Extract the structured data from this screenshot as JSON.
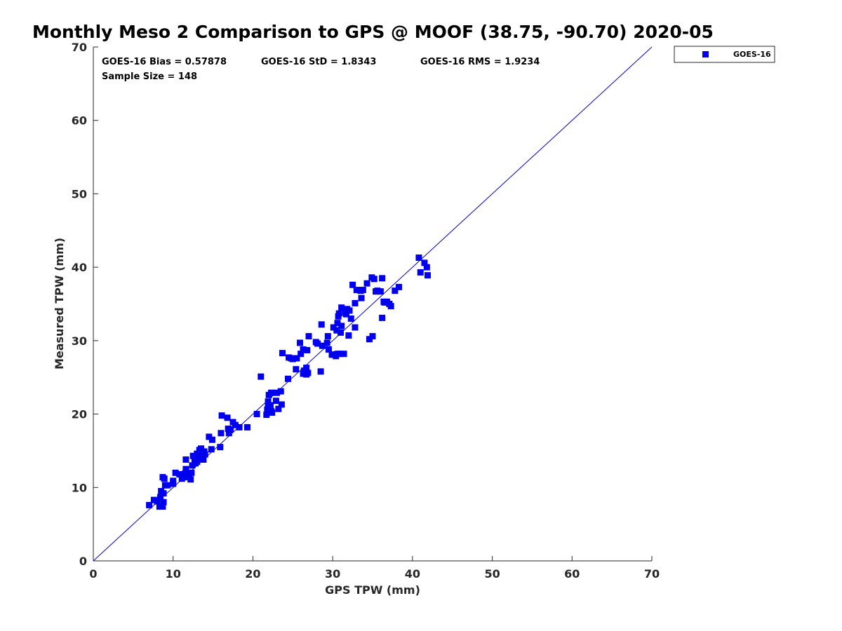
{
  "chart_data": {
    "type": "scatter",
    "title": "Monthly Meso 2 Comparison to GPS @ MOOF (38.75, -90.70) 2020-05",
    "xlabel": "GPS TPW (mm)",
    "ylabel": "Measured TPW (mm)",
    "xlim": [
      0,
      70
    ],
    "ylim": [
      0,
      70
    ],
    "xticks": [
      "0",
      "10",
      "20",
      "30",
      "40",
      "50",
      "60",
      "70"
    ],
    "yticks": [
      "0",
      "10",
      "20",
      "30",
      "40",
      "50",
      "60",
      "70"
    ],
    "grid": false,
    "legend_position": "top-right-outside",
    "reference_line": {
      "from": [
        0,
        0
      ],
      "to": [
        70,
        70
      ],
      "color": "#0000cc"
    },
    "annotations": [
      "GOES-16 Bias = 0.57878",
      "GOES-16 StD = 1.8343",
      "GOES-16 RMS = 1.9234",
      "Sample Size = 148"
    ],
    "series": [
      {
        "name": "GOES-16",
        "color": "#0000ee",
        "marker": "square",
        "points": [
          [
            7.0,
            7.6
          ],
          [
            7.6,
            8.3
          ],
          [
            8.0,
            8.1
          ],
          [
            8.3,
            7.4
          ],
          [
            8.4,
            8.7
          ],
          [
            8.5,
            9.5
          ],
          [
            8.7,
            7.4
          ],
          [
            8.8,
            8.0
          ],
          [
            8.8,
            9.2
          ],
          [
            8.7,
            11.4
          ],
          [
            8.9,
            11.2
          ],
          [
            9.0,
            10.3
          ],
          [
            10.0,
            10.5
          ],
          [
            10.0,
            10.9
          ],
          [
            10.3,
            12.0
          ],
          [
            10.8,
            11.8
          ],
          [
            11.1,
            11.2
          ],
          [
            11.3,
            11.6
          ],
          [
            11.5,
            11.9
          ],
          [
            11.6,
            12.5
          ],
          [
            11.8,
            11.4
          ],
          [
            11.6,
            13.8
          ],
          [
            12.2,
            11.1
          ],
          [
            12.3,
            12.0
          ],
          [
            12.4,
            13.0
          ],
          [
            12.5,
            14.3
          ],
          [
            12.8,
            13.3
          ],
          [
            13.0,
            13.5
          ],
          [
            13.0,
            14.6
          ],
          [
            13.2,
            14.0
          ],
          [
            13.3,
            15.1
          ],
          [
            13.5,
            14.3
          ],
          [
            13.5,
            15.3
          ],
          [
            13.8,
            13.8
          ],
          [
            14.0,
            14.5
          ],
          [
            13.9,
            14.9
          ],
          [
            14.5,
            16.9
          ],
          [
            14.8,
            15.2
          ],
          [
            14.9,
            16.5
          ],
          [
            15.9,
            15.5
          ],
          [
            16.0,
            17.4
          ],
          [
            16.1,
            19.8
          ],
          [
            16.8,
            19.5
          ],
          [
            17.0,
            17.4
          ],
          [
            17.2,
            17.9
          ],
          [
            17.5,
            18.9
          ],
          [
            17.8,
            18.5
          ],
          [
            18.3,
            18.2
          ],
          [
            19.3,
            18.2
          ],
          [
            20.5,
            20.0
          ],
          [
            21.0,
            25.1
          ],
          [
            21.7,
            19.9
          ],
          [
            21.8,
            20.6
          ],
          [
            21.9,
            21.1
          ],
          [
            21.9,
            21.7
          ],
          [
            22.0,
            22.6
          ],
          [
            22.2,
            21.2
          ],
          [
            22.3,
            22.9
          ],
          [
            22.3,
            20.4
          ],
          [
            22.4,
            20.2
          ],
          [
            22.9,
            21.8
          ],
          [
            23.0,
            22.9
          ],
          [
            23.2,
            20.7
          ],
          [
            23.6,
            21.3
          ],
          [
            23.5,
            23.1
          ],
          [
            23.7,
            28.3
          ],
          [
            24.4,
            24.8
          ],
          [
            24.5,
            27.7
          ],
          [
            25.0,
            27.5
          ],
          [
            25.4,
            26.1
          ],
          [
            25.5,
            27.6
          ],
          [
            25.9,
            29.7
          ],
          [
            26.0,
            28.2
          ],
          [
            26.3,
            28.8
          ],
          [
            26.3,
            25.5
          ],
          [
            26.4,
            25.9
          ],
          [
            26.7,
            26.3
          ],
          [
            26.9,
            25.6
          ],
          [
            26.8,
            28.7
          ],
          [
            27.0,
            30.6
          ],
          [
            27.9,
            29.8
          ],
          [
            28.1,
            29.6
          ],
          [
            28.5,
            25.8
          ],
          [
            28.6,
            32.2
          ],
          [
            28.7,
            29.3
          ],
          [
            29.3,
            29.7
          ],
          [
            29.4,
            30.6
          ],
          [
            29.5,
            28.8
          ],
          [
            30.0,
            28.1
          ],
          [
            30.1,
            31.8
          ],
          [
            30.4,
            27.9
          ],
          [
            30.5,
            31.4
          ],
          [
            30.6,
            28.2
          ],
          [
            30.6,
            32.4
          ],
          [
            30.7,
            33.3
          ],
          [
            30.8,
            33.7
          ],
          [
            31.0,
            31.1
          ],
          [
            31.1,
            32.0
          ],
          [
            31.1,
            34.5
          ],
          [
            31.4,
            28.2
          ],
          [
            31.6,
            33.8
          ],
          [
            31.8,
            34.3
          ],
          [
            32.0,
            30.7
          ],
          [
            32.1,
            34.1
          ],
          [
            32.3,
            33.0
          ],
          [
            32.5,
            37.6
          ],
          [
            32.8,
            31.8
          ],
          [
            32.8,
            35.1
          ],
          [
            33.0,
            36.9
          ],
          [
            33.5,
            36.8
          ],
          [
            33.6,
            35.8
          ],
          [
            33.8,
            36.9
          ],
          [
            34.3,
            37.8
          ],
          [
            34.6,
            30.2
          ],
          [
            34.9,
            38.6
          ],
          [
            35.0,
            30.6
          ],
          [
            35.2,
            38.4
          ],
          [
            35.4,
            36.7
          ],
          [
            36.0,
            36.7
          ],
          [
            36.2,
            33.1
          ],
          [
            36.2,
            38.5
          ],
          [
            36.4,
            35.3
          ],
          [
            36.8,
            35.3
          ],
          [
            37.1,
            35.0
          ],
          [
            37.3,
            34.7
          ],
          [
            37.8,
            36.8
          ],
          [
            38.3,
            37.3
          ],
          [
            40.8,
            41.3
          ],
          [
            41.0,
            39.3
          ],
          [
            41.5,
            40.6
          ],
          [
            41.8,
            40.0
          ],
          [
            41.9,
            38.9
          ],
          [
            11.9,
            12.0
          ],
          [
            12.7,
            13.8
          ],
          [
            13.4,
            14.8
          ],
          [
            13.7,
            14.1
          ],
          [
            16.9,
            18.0
          ],
          [
            22.1,
            20.3
          ],
          [
            24.8,
            27.6
          ],
          [
            26.7,
            25.4
          ],
          [
            29.9,
            28.1
          ],
          [
            30.9,
            28.2
          ],
          [
            31.7,
            33.6
          ],
          [
            33.4,
            36.9
          ],
          [
            35.6,
            36.8
          ],
          [
            36.5,
            35.2
          ],
          [
            9.3,
            10.3
          ],
          [
            12.0,
            11.7
          ]
        ]
      }
    ]
  }
}
